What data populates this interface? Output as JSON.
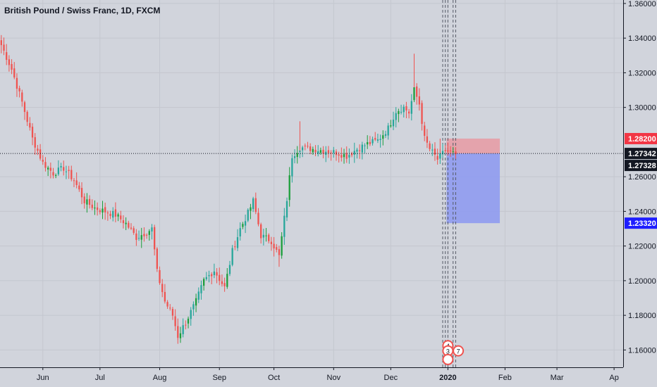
{
  "chart_data": {
    "type": "candlestick",
    "title": "British Pound / Swiss Franc, 1D, FXCM",
    "ylim": [
      1.15,
      1.362
    ],
    "y_ticks": [
      {
        "value": 1.36,
        "label": "1.36000"
      },
      {
        "value": 1.34,
        "label": "1.34000"
      },
      {
        "value": 1.32,
        "label": "1.32000"
      },
      {
        "value": 1.3,
        "label": "1.30000"
      },
      {
        "value": 1.26,
        "label": "1.26000"
      },
      {
        "value": 1.24,
        "label": "1.24000"
      },
      {
        "value": 1.22,
        "label": "1.22000"
      },
      {
        "value": 1.2,
        "label": "1.20000"
      },
      {
        "value": 1.18,
        "label": "1.18000"
      },
      {
        "value": 1.16,
        "label": "1.16000"
      }
    ],
    "x_ticks": [
      {
        "i": 16,
        "label": "Jun"
      },
      {
        "i": 38,
        "label": "Jul"
      },
      {
        "i": 61,
        "label": "Aug"
      },
      {
        "i": 84,
        "label": "Sep"
      },
      {
        "i": 105,
        "label": "Oct"
      },
      {
        "i": 128,
        "label": "Nov"
      },
      {
        "i": 150,
        "label": "Dec"
      },
      {
        "i": 172,
        "label": "2020",
        "bold": true
      },
      {
        "i": 194,
        "label": "Feb"
      },
      {
        "i": 214,
        "label": "Mar"
      },
      {
        "i": 236,
        "label": "Ap"
      }
    ],
    "n_slots": 240,
    "waypoints": [
      [
        0,
        1.336
      ],
      [
        4,
        1.322
      ],
      [
        8,
        1.303
      ],
      [
        12,
        1.282
      ],
      [
        16,
        1.268
      ],
      [
        20,
        1.262
      ],
      [
        24,
        1.265
      ],
      [
        28,
        1.258
      ],
      [
        32,
        1.246
      ],
      [
        36,
        1.242
      ],
      [
        40,
        1.24
      ],
      [
        44,
        1.238
      ],
      [
        48,
        1.233
      ],
      [
        52,
        1.225
      ],
      [
        56,
        1.228
      ],
      [
        58,
        1.23
      ],
      [
        60,
        1.205
      ],
      [
        63,
        1.188
      ],
      [
        66,
        1.18
      ],
      [
        68,
        1.168
      ],
      [
        71,
        1.176
      ],
      [
        75,
        1.188
      ],
      [
        78,
        1.2
      ],
      [
        82,
        1.206
      ],
      [
        86,
        1.196
      ],
      [
        89,
        1.217
      ],
      [
        92,
        1.23
      ],
      [
        95,
        1.239
      ],
      [
        97,
        1.246
      ],
      [
        100,
        1.226
      ],
      [
        104,
        1.223
      ],
      [
        107,
        1.214
      ],
      [
        110,
        1.247
      ],
      [
        112,
        1.272
      ],
      [
        115,
        1.277
      ],
      [
        120,
        1.276
      ],
      [
        125,
        1.275
      ],
      [
        129,
        1.274
      ],
      [
        133,
        1.272
      ],
      [
        137,
        1.276
      ],
      [
        141,
        1.279
      ],
      [
        145,
        1.281
      ],
      [
        149,
        1.288
      ],
      [
        152,
        1.298
      ],
      [
        155,
        1.3
      ],
      [
        157,
        1.297
      ],
      [
        159,
        1.31
      ],
      [
        161,
        1.302
      ],
      [
        163,
        1.282
      ],
      [
        165,
        1.276
      ],
      [
        168,
        1.27
      ],
      [
        171,
        1.275
      ],
      [
        173,
        1.274
      ],
      [
        175,
        1.273
      ]
    ],
    "position": {
      "entry": 1.27342,
      "target": 1.282,
      "stop": 1.2332,
      "start_i": 172,
      "end_i": 192
    },
    "price_tags": [
      {
        "value": 1.282,
        "label": "1.28200",
        "color": "#f23645"
      },
      {
        "value": 1.27342,
        "label": "1.27342",
        "color": "#131722"
      },
      {
        "value": 1.27328,
        "label": "1.27328",
        "color": "#131722"
      },
      {
        "value": 1.2332,
        "label": "1.23320",
        "color": "#1e1eff"
      }
    ],
    "last_price": 1.27342,
    "dashed_vlines": [
      170,
      171,
      172,
      174,
      175
    ],
    "markers": [
      {
        "i": 172,
        "value": 1.1625,
        "label": "4",
        "color": "#ef5350"
      },
      {
        "i": 172,
        "value": 1.1595,
        "label": "3",
        "color": "#ef5350"
      },
      {
        "i": 176,
        "value": 1.1595,
        "label": "7",
        "color": "#ef5350"
      },
      {
        "i": 172,
        "value": 1.1545,
        "label": "",
        "color": "#ef5350"
      }
    ],
    "colors": {
      "up": "#26a69a",
      "up_bright": "#1b9e3a",
      "down": "#ef5350",
      "background": "#d1d4dc",
      "grid": "#c4c7cf",
      "target_zone": "#e89aa3",
      "stop_zone": "#8f9bf0"
    }
  }
}
